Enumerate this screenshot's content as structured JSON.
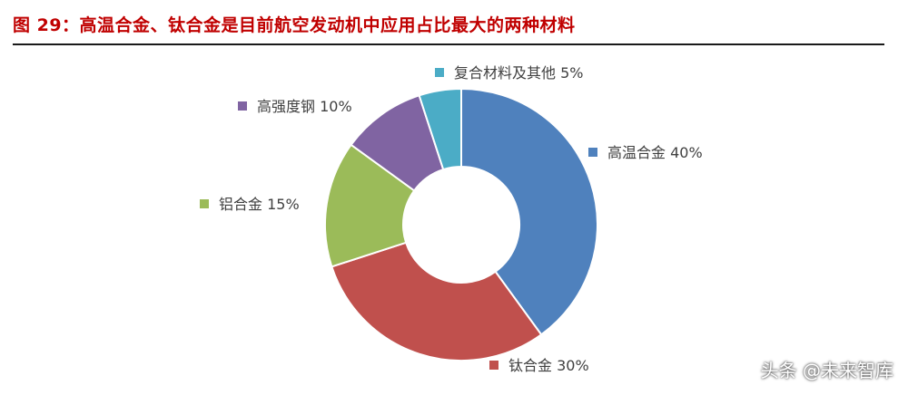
{
  "figure": {
    "title": "图 29：高温合金、钛合金是目前航空发动机中应用占比最大的两种材料"
  },
  "chart_data": {
    "type": "pie",
    "variant": "donut",
    "title": "",
    "categories": [
      "高温合金",
      "钛合金",
      "铝合金",
      "高强度钢",
      "复合材料及其他"
    ],
    "values": [
      40,
      30,
      15,
      10,
      5
    ],
    "labels": [
      "高温合金 40%",
      "钛合金 30%",
      "铝合金 15%",
      "高强度钢 10%",
      "复合材料及其他 5%"
    ],
    "colors": [
      "#4f81bd",
      "#c0504d",
      "#9bbb59",
      "#8064a2",
      "#4bacc6"
    ],
    "unit": "%"
  },
  "watermark": {
    "text": "头条 @未来智库"
  }
}
